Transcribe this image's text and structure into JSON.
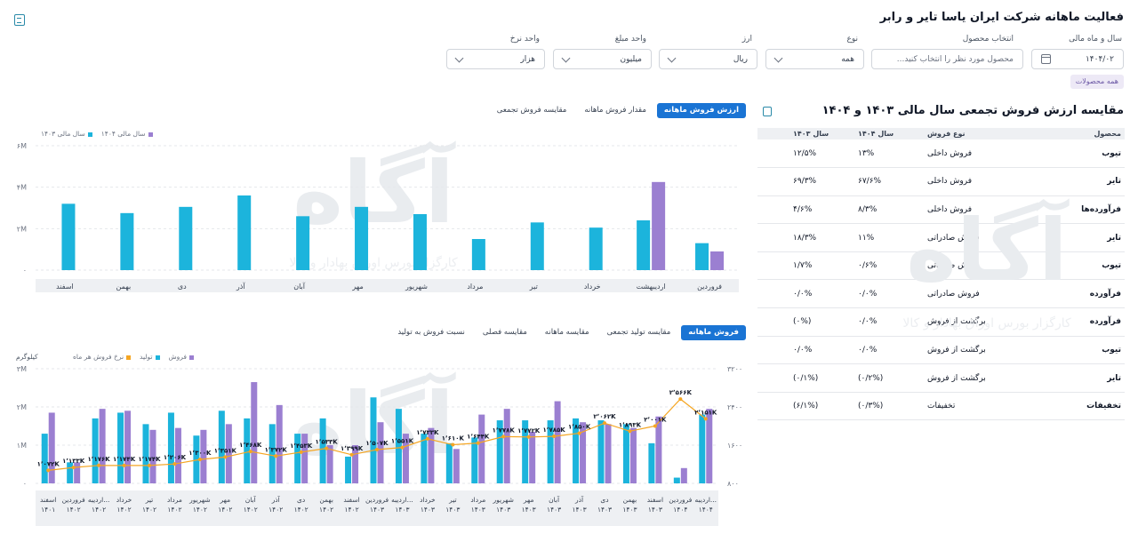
{
  "header": {
    "title": "فعالیت ماهانه شرکت ایران یاسا تایر و رابر"
  },
  "filters": {
    "fiscal_month": {
      "label": "سال و ماه مالی",
      "value": "۱۴۰۴/۰۲"
    },
    "product": {
      "label": "انتخاب محصول",
      "placeholder": "محصول مورد نظر را انتخاب کنید..."
    },
    "type": {
      "label": "نوع",
      "value": "همه"
    },
    "currency": {
      "label": "ارز",
      "value": "ریال"
    },
    "amount_unit": {
      "label": "واحد مبلغ",
      "value": "میلیون"
    },
    "quantity_unit": {
      "label": "واحد نرخ",
      "value": "هزار"
    },
    "all_products_chip": "همه محصولات"
  },
  "comparison": {
    "title": "مقایسه ارزش فروش تجمعی سال مالی ۱۴۰۳ و ۱۴۰۴",
    "headers": [
      "محصول",
      "نوع فروش",
      "سال ۱۴۰۴",
      "سال ۱۴۰۳"
    ],
    "rows": [
      {
        "product": "تیوب",
        "type": "فروش داخلی",
        "y1404": "۱۳%",
        "y1403": "۱۲/۵%"
      },
      {
        "product": "تایر",
        "type": "فروش داخلی",
        "y1404": "۶۷/۶%",
        "y1403": "۶۹/۳%"
      },
      {
        "product": "فرآورده‌ها",
        "type": "فروش داخلی",
        "y1404": "۸/۳%",
        "y1403": "۴/۶%"
      },
      {
        "product": "تایر",
        "type": "فروش صادراتی",
        "y1404": "۱۱%",
        "y1403": "۱۸/۳%"
      },
      {
        "product": "تیوب",
        "type": "فروش صادراتی",
        "y1404": "۰/۶%",
        "y1403": "۱/۷%"
      },
      {
        "product": "فرآورده",
        "type": "فروش صادراتی",
        "y1404": "۰/۰%",
        "y1403": "۰/۰%"
      },
      {
        "product": "فرآورده",
        "type": "برگشت از فروش",
        "y1404": "۰/۰%",
        "y1403": "(۰%)"
      },
      {
        "product": "تیوب",
        "type": "برگشت از فروش",
        "y1404": "۰/۰%",
        "y1403": "۰/۰%"
      },
      {
        "product": "تایر",
        "type": "برگشت از فروش",
        "y1404": "(۰/۲%)",
        "y1403": "(۰/۱%)"
      },
      {
        "product": "تخفیفات",
        "type": "تخفیفات",
        "y1404": "(۰/۳%)",
        "y1403": "(۶/۱%)"
      }
    ]
  },
  "top_chart": {
    "tabs": [
      {
        "label": "ارزش فروش ماهانه",
        "active": true
      },
      {
        "label": "مقدار فروش ماهانه",
        "active": false
      },
      {
        "label": "مقایسه فروش تجمعی",
        "active": false
      }
    ],
    "legend": [
      {
        "label": "سال مالی ۱۴۰۴",
        "color": "#9b7fd1"
      },
      {
        "label": "سال مالی ۱۴۰۳",
        "color": "#1cb4dc"
      }
    ]
  },
  "bottom_chart": {
    "tabs": [
      {
        "label": "فروش ماهانه",
        "active": true
      },
      {
        "label": "مقایسه تولید تجمعی",
        "active": false
      },
      {
        "label": "مقایسه ماهانه",
        "active": false
      },
      {
        "label": "مقایسه فصلی",
        "active": false
      },
      {
        "label": "نسبت فروش به تولید",
        "active": false
      }
    ],
    "legend": [
      {
        "label": "فروش",
        "color": "#9b7fd1"
      },
      {
        "label": "تولید",
        "color": "#1cb4dc"
      },
      {
        "label": "نرخ فروش هر ماه",
        "color": "#f5a623"
      }
    ],
    "left_axis_unit": "کیلوگرم"
  },
  "watermark": {
    "text": "آگاه",
    "subtitle": "کارگزار بورس اوراق بهادار و کالا"
  },
  "chart_data": [
    {
      "type": "bar",
      "categories": [
        "اسفند",
        "بهمن",
        "دی",
        "آذر",
        "آبان",
        "مهر",
        "شهریور",
        "مرداد",
        "تیر",
        "خرداد",
        "اردیبهشت",
        "فروردین"
      ],
      "ytick_labels": [
        "۰",
        "۲M",
        "۴M",
        "۶M"
      ],
      "ylim": [
        0,
        6000000
      ],
      "series": [
        {
          "name": "سال مالی ۱۴۰۳",
          "color": "#1cb4dc",
          "values": [
            3200000,
            2750000,
            3050000,
            3600000,
            2600000,
            3050000,
            2700000,
            1500000,
            2300000,
            2050000,
            2400000,
            1300000
          ]
        },
        {
          "name": "سال مالی ۱۴۰۴",
          "color": "#9b7fd1",
          "values": [
            null,
            null,
            null,
            null,
            null,
            null,
            null,
            null,
            null,
            null,
            4250000,
            900000
          ]
        }
      ]
    },
    {
      "type": "bar",
      "categories": [
        "اسفند ۱۴۰۱",
        "فروردین ۱۴۰۲",
        "اردیبه... ۱۴۰۲",
        "خرداد ۱۴۰۲",
        "تیر ۱۴۰۲",
        "مرداد ۱۴۰۲",
        "شهریور ۱۴۰۲",
        "مهر ۱۴۰۲",
        "آبان ۱۴۰۲",
        "آذر ۱۴۰۲",
        "دی ۱۴۰۲",
        "بهمن ۱۴۰۲",
        "اسفند ۱۴۰۲",
        "فروردین ۱۴۰۳",
        "اردیبه... ۱۴۰۳",
        "خرداد ۱۴۰۳",
        "تیر ۱۴۰۳",
        "مرداد ۱۴۰۳",
        "شهریور ۱۴۰۳",
        "مهر ۱۴۰۳",
        "آبان ۱۴۰۳",
        "آذر ۱۴۰۳",
        "دی ۱۴۰۳",
        "بهمن ۱۴۰۳",
        "اسفند ۱۴۰۳",
        "فروردین ۱۴۰۴",
        "اردیبه... ۱۴۰۴"
      ],
      "ytick_labels_left": [
        "۰",
        "۱M",
        "۲M",
        "۳M"
      ],
      "ylim_left": [
        0,
        3000000
      ],
      "ytick_labels_right": [
        "۸۰۰",
        "۱۶۰۰",
        "۲۴۰۰",
        "۳۲۰۰"
      ],
      "ylim_right": [
        800,
        3200
      ],
      "series": [
        {
          "name": "تولید",
          "color": "#1cb4dc",
          "values": [
            1300000,
            550000,
            1700000,
            1850000,
            1550000,
            1850000,
            1250000,
            1900000,
            1700000,
            1550000,
            1300000,
            1700000,
            700000,
            2250000,
            1950000,
            1300000,
            1050000,
            1200000,
            1650000,
            1650000,
            1650000,
            1700000,
            1650000,
            1550000,
            1050000,
            150000,
            1800000
          ]
        },
        {
          "name": "فروش",
          "color": "#9b7fd1",
          "values": [
            1850000,
            550000,
            1950000,
            1900000,
            1400000,
            1450000,
            1400000,
            1550000,
            2650000,
            2050000,
            1300000,
            1000000,
            1000000,
            1600000,
            1300000,
            1450000,
            900000,
            1800000,
            1950000,
            1350000,
            2150000,
            1600000,
            1550000,
            1450000,
            1750000,
            400000,
            1950000
          ]
        },
        {
          "name": "نرخ فروش هر ماه",
          "color": "#f5a623",
          "values": [
            1072,
            1133,
            1176,
            1174,
            1174,
            1206,
            1300,
            1351,
            1468,
            1372,
            1453,
            1533,
            1399,
            1507,
            1551,
            1733,
            1610,
            1644,
            1778,
            1772,
            1785,
            1850,
            2062,
            1893,
            2001,
            2566,
            2151
          ]
        }
      ],
      "point_labels": [
        "۱٬۰۷۲K",
        "۱٬۱۳۳K",
        "۱٬۱۷۶K",
        "۱٬۱۷۴K",
        "۱٬۱۷۴K",
        "۱٬۲۰۶K",
        "۱٬۳۰۰K",
        "۱٬۳۵۱K",
        "۱٬۴۶۸K",
        "۱٬۳۷۲K",
        "۱٬۴۵۳K",
        "۱٬۵۳۳K",
        "۱٬۳۹۹K",
        "۱٬۵۰۷K",
        "۱٬۵۵۱K",
        "۱٬۷۳۳K",
        "۱٬۶۱۰K",
        "۱٬۶۴۴K",
        "۱٬۷۷۸K",
        "۱٬۷۷۲K",
        "۱٬۷۸۵K",
        "۱٬۸۵۰K",
        "۲٬۰۶۲K",
        "۱٬۸۹۳K",
        "۲٬۰۰۱K",
        "۲٬۵۶۶K",
        "۲٬۱۵۱K"
      ]
    }
  ]
}
